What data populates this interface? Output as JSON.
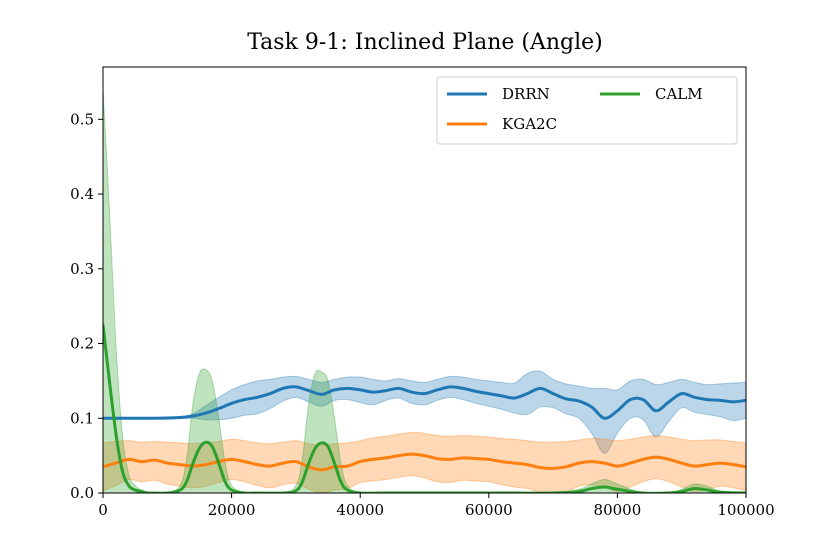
{
  "chart_data": {
    "type": "line",
    "title": "Task 9-1: Inclined Plane (Angle)",
    "xlabel": "",
    "ylabel": "",
    "xlim": [
      0,
      100000
    ],
    "ylim": [
      0,
      0.57
    ],
    "xticks": [
      0,
      20000,
      40000,
      60000,
      80000,
      100000
    ],
    "xtick_labels": [
      "0",
      "20000",
      "40000",
      "60000",
      "80000",
      "100000"
    ],
    "yticks": [
      0.0,
      0.1,
      0.2,
      0.3,
      0.4,
      0.5
    ],
    "ytick_labels": [
      "0.0",
      "0.1",
      "0.2",
      "0.3",
      "0.4",
      "0.5"
    ],
    "legend_position": "top-right",
    "series": [
      {
        "name": "DRRN",
        "color": "#1f77b4",
        "x": [
          0,
          4000,
          8000,
          12000,
          14000,
          16000,
          18000,
          20000,
          22000,
          24000,
          26000,
          28000,
          30000,
          32000,
          34000,
          36000,
          38000,
          40000,
          42000,
          44000,
          46000,
          48000,
          50000,
          52000,
          54000,
          56000,
          58000,
          60000,
          62000,
          64000,
          66000,
          68000,
          70000,
          72000,
          74000,
          76000,
          78000,
          80000,
          82000,
          84000,
          86000,
          88000,
          90000,
          92000,
          94000,
          96000,
          98000,
          100000
        ],
        "mean": [
          0.1,
          0.1,
          0.1,
          0.101,
          0.103,
          0.107,
          0.113,
          0.12,
          0.125,
          0.128,
          0.133,
          0.14,
          0.142,
          0.137,
          0.132,
          0.138,
          0.14,
          0.138,
          0.135,
          0.137,
          0.14,
          0.135,
          0.133,
          0.138,
          0.142,
          0.14,
          0.136,
          0.133,
          0.13,
          0.127,
          0.133,
          0.14,
          0.133,
          0.126,
          0.123,
          0.115,
          0.1,
          0.11,
          0.125,
          0.125,
          0.11,
          0.122,
          0.133,
          0.128,
          0.125,
          0.124,
          0.122,
          0.124
        ],
        "upper": [
          0.1,
          0.1,
          0.1,
          0.102,
          0.106,
          0.117,
          0.128,
          0.138,
          0.145,
          0.15,
          0.152,
          0.155,
          0.156,
          0.152,
          0.148,
          0.152,
          0.155,
          0.155,
          0.152,
          0.15,
          0.153,
          0.15,
          0.148,
          0.152,
          0.156,
          0.155,
          0.152,
          0.15,
          0.148,
          0.147,
          0.16,
          0.163,
          0.152,
          0.146,
          0.143,
          0.14,
          0.14,
          0.138,
          0.15,
          0.152,
          0.145,
          0.148,
          0.152,
          0.148,
          0.145,
          0.146,
          0.147,
          0.148
        ],
        "lower": [
          0.1,
          0.1,
          0.1,
          0.1,
          0.1,
          0.098,
          0.098,
          0.1,
          0.104,
          0.106,
          0.113,
          0.123,
          0.128,
          0.122,
          0.116,
          0.124,
          0.125,
          0.121,
          0.118,
          0.124,
          0.127,
          0.12,
          0.118,
          0.124,
          0.128,
          0.125,
          0.12,
          0.116,
          0.112,
          0.107,
          0.105,
          0.115,
          0.114,
          0.106,
          0.1,
          0.08,
          0.053,
          0.08,
          0.1,
          0.098,
          0.075,
          0.096,
          0.114,
          0.108,
          0.105,
          0.102,
          0.097,
          0.1
        ]
      },
      {
        "name": "KGA2C",
        "color": "#ff7f0e",
        "x": [
          0,
          2000,
          4000,
          6000,
          8000,
          10000,
          12000,
          14000,
          16000,
          18000,
          20000,
          22000,
          24000,
          26000,
          28000,
          30000,
          32000,
          34000,
          36000,
          38000,
          40000,
          42000,
          44000,
          46000,
          48000,
          50000,
          52000,
          54000,
          56000,
          58000,
          60000,
          62000,
          64000,
          66000,
          68000,
          70000,
          72000,
          74000,
          76000,
          78000,
          80000,
          82000,
          84000,
          86000,
          88000,
          90000,
          92000,
          94000,
          96000,
          98000,
          100000
        ],
        "mean": [
          0.035,
          0.04,
          0.045,
          0.042,
          0.044,
          0.04,
          0.038,
          0.036,
          0.038,
          0.042,
          0.045,
          0.042,
          0.038,
          0.036,
          0.04,
          0.042,
          0.035,
          0.031,
          0.035,
          0.036,
          0.042,
          0.045,
          0.047,
          0.05,
          0.052,
          0.05,
          0.046,
          0.045,
          0.047,
          0.046,
          0.045,
          0.042,
          0.04,
          0.038,
          0.034,
          0.033,
          0.035,
          0.04,
          0.042,
          0.04,
          0.036,
          0.04,
          0.045,
          0.048,
          0.045,
          0.04,
          0.036,
          0.038,
          0.04,
          0.038,
          0.035
        ],
        "upper": [
          0.067,
          0.069,
          0.07,
          0.068,
          0.069,
          0.068,
          0.067,
          0.066,
          0.067,
          0.069,
          0.072,
          0.07,
          0.067,
          0.066,
          0.068,
          0.07,
          0.066,
          0.064,
          0.066,
          0.067,
          0.07,
          0.074,
          0.076,
          0.079,
          0.081,
          0.08,
          0.077,
          0.076,
          0.077,
          0.076,
          0.075,
          0.073,
          0.072,
          0.07,
          0.068,
          0.068,
          0.069,
          0.071,
          0.073,
          0.072,
          0.07,
          0.072,
          0.075,
          0.077,
          0.075,
          0.072,
          0.07,
          0.071,
          0.071,
          0.069,
          0.067
        ],
        "lower": [
          0.003,
          0.01,
          0.018,
          0.015,
          0.017,
          0.012,
          0.009,
          0.007,
          0.009,
          0.014,
          0.018,
          0.015,
          0.01,
          0.007,
          0.011,
          0.013,
          0.005,
          0.0,
          0.004,
          0.006,
          0.014,
          0.016,
          0.018,
          0.021,
          0.023,
          0.02,
          0.015,
          0.014,
          0.017,
          0.016,
          0.015,
          0.011,
          0.008,
          0.006,
          0.001,
          0.0,
          0.001,
          0.009,
          0.011,
          0.008,
          0.002,
          0.008,
          0.015,
          0.019,
          0.015,
          0.008,
          0.002,
          0.005,
          0.009,
          0.007,
          0.003
        ]
      },
      {
        "name": "CALM",
        "color": "#2ca02c",
        "x": [
          0,
          1000,
          2000,
          3000,
          4000,
          5000,
          6000,
          7000,
          8000,
          10000,
          12000,
          13000,
          14000,
          15000,
          16000,
          17000,
          18000,
          19000,
          20000,
          22000,
          24000,
          28000,
          30000,
          31000,
          32000,
          33000,
          34000,
          35000,
          36000,
          37000,
          38000,
          40000,
          44000,
          50000,
          60000,
          70000,
          74000,
          76000,
          78000,
          80000,
          84000,
          88000,
          90000,
          92000,
          94000,
          96000,
          100000
        ],
        "mean": [
          0.225,
          0.15,
          0.08,
          0.03,
          0.01,
          0.004,
          0.002,
          0.0,
          0.0,
          0.0,
          0.004,
          0.015,
          0.04,
          0.06,
          0.068,
          0.062,
          0.04,
          0.015,
          0.004,
          0.0,
          0.0,
          0.0,
          0.003,
          0.015,
          0.04,
          0.06,
          0.067,
          0.062,
          0.04,
          0.015,
          0.004,
          0.0,
          0.0,
          0.0,
          0.0,
          0.0,
          0.002,
          0.006,
          0.008,
          0.005,
          0.0,
          0.0,
          0.002,
          0.006,
          0.004,
          0.001,
          0.0
        ],
        "upper": [
          0.54,
          0.38,
          0.2,
          0.08,
          0.025,
          0.01,
          0.004,
          0.001,
          0.0,
          0.0,
          0.01,
          0.045,
          0.12,
          0.16,
          0.165,
          0.15,
          0.1,
          0.04,
          0.01,
          0.001,
          0.0,
          0.0,
          0.01,
          0.045,
          0.12,
          0.16,
          0.162,
          0.15,
          0.1,
          0.04,
          0.01,
          0.001,
          0.0,
          0.0,
          0.0,
          0.0,
          0.005,
          0.012,
          0.018,
          0.012,
          0.0,
          0.0,
          0.005,
          0.012,
          0.009,
          0.003,
          0.0
        ],
        "lower": [
          0.0,
          0.0,
          0.0,
          0.0,
          0.0,
          0.0,
          0.0,
          0.0,
          0.0,
          0.0,
          0.0,
          0.0,
          0.0,
          0.0,
          0.0,
          0.0,
          0.0,
          0.0,
          0.0,
          0.0,
          0.0,
          0.0,
          0.0,
          0.0,
          0.0,
          0.0,
          0.0,
          0.0,
          0.0,
          0.0,
          0.0,
          0.0,
          0.0,
          0.0,
          0.0,
          0.0,
          0.0,
          0.0,
          0.0,
          0.0,
          0.0,
          0.0,
          0.0,
          0.0,
          0.0,
          0.0,
          0.0
        ]
      }
    ]
  }
}
